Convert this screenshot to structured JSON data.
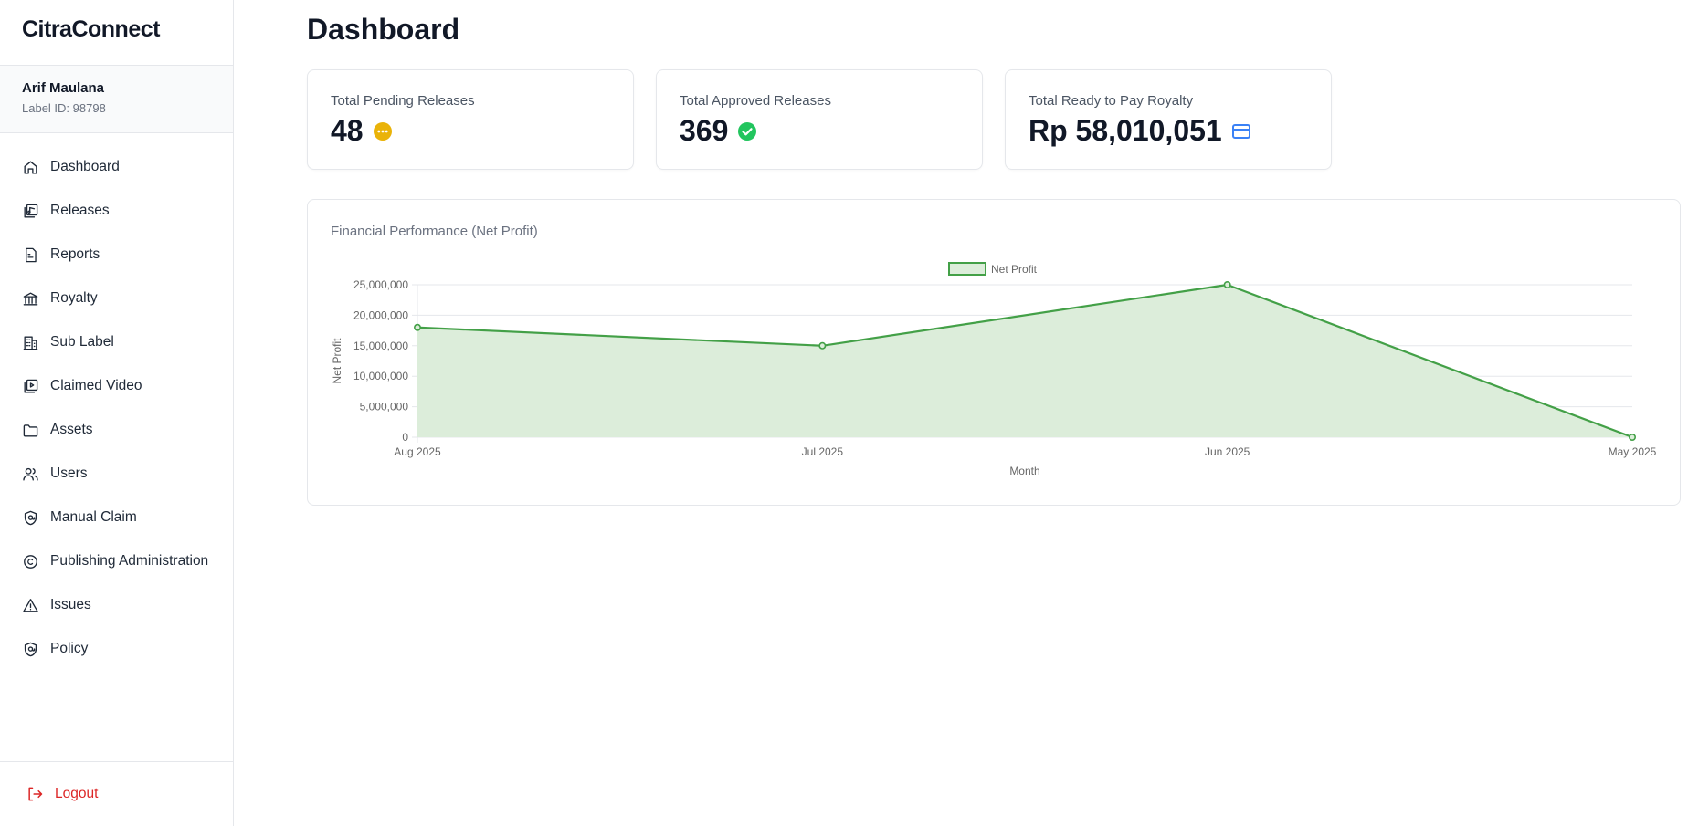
{
  "app": {
    "name": "CitraConnect"
  },
  "user": {
    "name": "Arif Maulana",
    "label_id": "Label ID: 98798"
  },
  "sidebar": {
    "items": [
      {
        "label": "Dashboard",
        "icon": "home-icon"
      },
      {
        "label": "Releases",
        "icon": "releases-icon"
      },
      {
        "label": "Reports",
        "icon": "report-icon"
      },
      {
        "label": "Royalty",
        "icon": "bank-icon"
      },
      {
        "label": "Sub Label",
        "icon": "building-icon"
      },
      {
        "label": "Claimed Video",
        "icon": "video-icon"
      },
      {
        "label": "Assets",
        "icon": "folder-icon"
      },
      {
        "label": "Users",
        "icon": "users-icon"
      },
      {
        "label": "Manual Claim",
        "icon": "shield-icon"
      },
      {
        "label": "Publishing Administration",
        "icon": "copyright-icon"
      },
      {
        "label": "Issues",
        "icon": "warning-icon"
      },
      {
        "label": "Policy",
        "icon": "shield-icon"
      }
    ],
    "logout": "Logout"
  },
  "page": {
    "title": "Dashboard"
  },
  "stats": [
    {
      "label": "Total Pending Releases",
      "value": "48",
      "icon": "pending-dots-icon",
      "color": "#eab308"
    },
    {
      "label": "Total Approved Releases",
      "value": "369",
      "icon": "check-circle-icon",
      "color": "#22c55e"
    },
    {
      "label": "Total Ready to Pay Royalty",
      "value": "Rp 58,010,051",
      "icon": "credit-card-icon",
      "color": "#3b82f6"
    }
  ],
  "chart": {
    "title": "Financial Performance (Net Profit)"
  },
  "chart_data": {
    "type": "area",
    "x": [
      "Aug 2025",
      "Jul 2025",
      "Jun 2025",
      "May 2025"
    ],
    "series": [
      {
        "name": "Net Profit",
        "values": [
          18000000,
          15000000,
          25000000,
          0
        ]
      }
    ],
    "xlabel": "Month",
    "ylabel": "Net Profit",
    "ylim": [
      0,
      25000000
    ],
    "yticks": [
      "0",
      "5,000,000",
      "10,000,000",
      "15,000,000",
      "20,000,000",
      "25,000,000"
    ],
    "grid": true,
    "legend": "top-center",
    "color": "#43a047",
    "fill": "#dcedda"
  }
}
